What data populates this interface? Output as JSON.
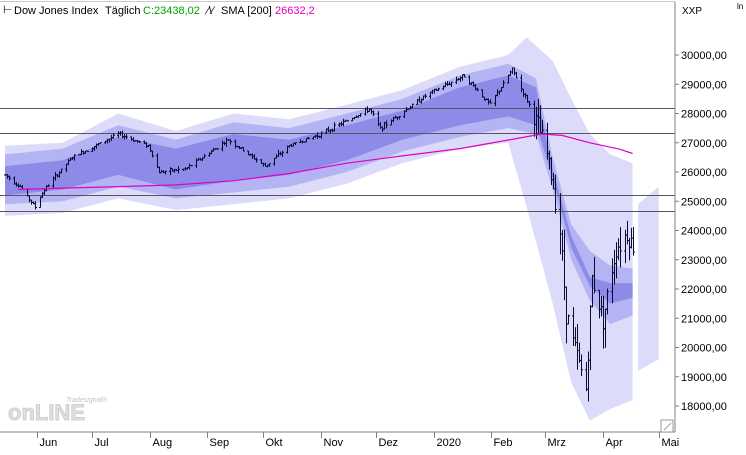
{
  "header": {
    "instrument": "Dow Jones Index",
    "timeframe": "Täglich",
    "close_text": "C:23438,02",
    "sma_label": "SMA [200]",
    "sma_value": "26632,2",
    "axis_symbol": "XXP",
    "corner_glyph": "ln"
  },
  "watermark": {
    "brand_small": "Tradesignal®",
    "brand_main": "onLINE"
  },
  "colors": {
    "price_bars": "#0a0a32",
    "close_text": "#00a000",
    "sma_line": "#e000c0",
    "band_outer": "#dcdcfa",
    "band_mid": "#b4b4f4",
    "band_inner": "#8c8ce8",
    "projection": "#dcdcfa",
    "hlines": "#555566"
  },
  "chart_data": {
    "type": "ohlc-bars",
    "title": "Dow Jones Index",
    "period": "Täglich",
    "last_close": 23438.02,
    "ylim": [
      17500,
      30600
    ],
    "y_ticks": [
      18000,
      19000,
      20000,
      21000,
      22000,
      23000,
      24000,
      25000,
      26000,
      27000,
      28000,
      29000,
      30000
    ],
    "y_tick_labels": [
      "18000,00",
      "19000,00",
      "20000,00",
      "21000,00",
      "22000,00",
      "23000,00",
      "24000,00",
      "25000,00",
      "26000,00",
      "27000,00",
      "28000,00",
      "29000,00",
      "30000,00"
    ],
    "x_labels": [
      "Jun",
      "Jul",
      "Aug",
      "Sep",
      "Okt",
      "Nov",
      "Dez",
      "2020",
      "Feb",
      "Mrz",
      "Apr",
      "Mai"
    ],
    "horizontal_lines": [
      28200,
      27350,
      25200,
      24680
    ],
    "sma_200": {
      "name": "SMA [200]",
      "last": 26632.2,
      "x": [
        "2019-05-22",
        "2019-06-15",
        "2019-07-15",
        "2019-08-15",
        "2019-09-15",
        "2019-10-15",
        "2019-11-15",
        "2019-12-15",
        "2020-01-15",
        "2020-02-15",
        "2020-02-28",
        "2020-03-10",
        "2020-03-25",
        "2020-04-10",
        "2020-04-17"
      ],
      "y": [
        25400,
        25450,
        25500,
        25560,
        25700,
        25950,
        26300,
        26550,
        26800,
        27150,
        27300,
        27250,
        27000,
        26780,
        26632
      ]
    },
    "price_path": {
      "x": [
        "2019-05-15",
        "2019-05-23",
        "2019-05-31",
        "2019-06-05",
        "2019-06-20",
        "2019-07-15",
        "2019-07-31",
        "2019-08-06",
        "2019-08-20",
        "2019-09-12",
        "2019-10-02",
        "2019-10-15",
        "2019-11-01",
        "2019-11-27",
        "2019-12-03",
        "2019-12-27",
        "2020-01-17",
        "2020-01-31",
        "2020-02-12",
        "2020-02-24",
        "2020-03-02",
        "2020-03-09",
        "2020-03-12",
        "2020-03-16",
        "2020-03-20",
        "2020-03-23",
        "2020-03-26",
        "2020-04-01",
        "2020-04-08",
        "2020-04-14",
        "2020-04-17"
      ],
      "y": [
        25900,
        25500,
        24800,
        25400,
        26500,
        27300,
        26900,
        26000,
        26100,
        27100,
        26200,
        26900,
        27300,
        28150,
        27500,
        28600,
        29300,
        28300,
        29500,
        27900,
        26600,
        24000,
        21200,
        20200,
        19200,
        18600,
        22400,
        21000,
        23400,
        23900,
        23438
      ]
    },
    "band_outer": {
      "x": [
        "2019-05-15",
        "2019-06-15",
        "2019-07-15",
        "2019-08-15",
        "2019-09-15",
        "2019-10-15",
        "2019-11-15",
        "2019-12-15",
        "2020-01-15",
        "2020-02-10",
        "2020-02-20",
        "2020-03-05",
        "2020-03-15",
        "2020-03-25",
        "2020-04-05",
        "2020-04-17"
      ],
      "upper": [
        26900,
        27000,
        28000,
        27400,
        28000,
        27800,
        28300,
        28800,
        29600,
        30000,
        30600,
        29800,
        28500,
        27300,
        26600,
        26300
      ],
      "lower": [
        24500,
        24600,
        25100,
        24700,
        24900,
        25100,
        25600,
        26300,
        26800,
        27000,
        24800,
        21500,
        18800,
        17500,
        17900,
        18200
      ]
    },
    "band_mid": {
      "x": [
        "2019-05-15",
        "2019-06-15",
        "2019-07-15",
        "2019-08-15",
        "2019-09-15",
        "2019-10-15",
        "2019-11-15",
        "2019-12-15",
        "2020-01-15",
        "2020-02-10",
        "2020-02-25",
        "2020-03-05",
        "2020-03-15",
        "2020-03-25",
        "2020-04-05",
        "2020-04-17"
      ],
      "upper": [
        26600,
        26800,
        27600,
        27100,
        27700,
        27500,
        28000,
        28500,
        29300,
        29700,
        29200,
        26500,
        24200,
        23300,
        22800,
        22700
      ],
      "lower": [
        24900,
        25000,
        25500,
        25100,
        25300,
        25500,
        26000,
        26700,
        27200,
        27500,
        27300,
        25400,
        23000,
        21600,
        20800,
        21100
      ]
    },
    "band_inner": {
      "x": [
        "2019-05-15",
        "2019-06-15",
        "2019-07-15",
        "2019-08-15",
        "2019-09-15",
        "2019-10-15",
        "2019-11-15",
        "2019-12-15",
        "2020-01-15",
        "2020-02-10",
        "2020-02-25",
        "2020-03-05",
        "2020-03-15",
        "2020-03-25",
        "2020-04-05",
        "2020-04-17"
      ],
      "upper": [
        26200,
        26400,
        27200,
        26800,
        27300,
        27100,
        27600,
        28100,
        28900,
        29300,
        28900,
        26100,
        23800,
        22400,
        22200,
        22200
      ],
      "lower": [
        25200,
        25400,
        25900,
        25400,
        25700,
        25900,
        26400,
        27100,
        27600,
        27900,
        27600,
        25800,
        23400,
        22100,
        21500,
        21700
      ]
    },
    "projection": {
      "x": [
        "2020-04-20",
        "2020-05-01"
      ],
      "upper": [
        24900,
        25500
      ],
      "lower": [
        19200,
        19600
      ]
    }
  }
}
